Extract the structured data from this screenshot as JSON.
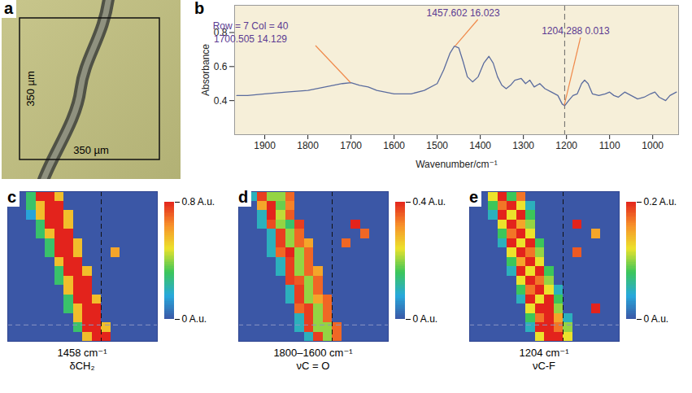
{
  "chart_data": [
    {
      "type": "image",
      "panel": "a",
      "width_label": "350 µm",
      "height_label": "350 µm"
    },
    {
      "type": "line",
      "panel": "b",
      "color": "#5b6c9e",
      "xlabel": "Wavenumber/cm⁻¹",
      "ylabel": "Absorbance",
      "xlim": [
        1970,
        940
      ],
      "ylim": [
        0.2,
        0.96
      ],
      "xticks": [
        1900,
        1800,
        1700,
        1600,
        1500,
        1400,
        1300,
        1200,
        1100,
        1000
      ],
      "yticks": [
        0.4,
        0.6,
        0.8
      ],
      "x": [
        1965,
        1940,
        1900,
        1850,
        1800,
        1760,
        1720,
        1700,
        1680,
        1660,
        1640,
        1600,
        1560,
        1530,
        1500,
        1485,
        1470,
        1460,
        1450,
        1440,
        1430,
        1418,
        1405,
        1392,
        1380,
        1370,
        1360,
        1350,
        1340,
        1330,
        1320,
        1305,
        1295,
        1285,
        1275,
        1262,
        1250,
        1235,
        1220,
        1210,
        1204,
        1195,
        1185,
        1175,
        1165,
        1158,
        1150,
        1140,
        1125,
        1110,
        1100,
        1090,
        1080,
        1065,
        1050,
        1035,
        1020,
        1005,
        995,
        985,
        970,
        960,
        945
      ],
      "values": [
        0.43,
        0.43,
        0.44,
        0.45,
        0.46,
        0.48,
        0.5,
        0.505,
        0.49,
        0.48,
        0.46,
        0.44,
        0.44,
        0.46,
        0.5,
        0.58,
        0.68,
        0.72,
        0.71,
        0.63,
        0.54,
        0.51,
        0.54,
        0.62,
        0.66,
        0.62,
        0.54,
        0.49,
        0.47,
        0.49,
        0.52,
        0.53,
        0.5,
        0.52,
        0.48,
        0.5,
        0.47,
        0.45,
        0.43,
        0.38,
        0.37,
        0.4,
        0.43,
        0.44,
        0.5,
        0.52,
        0.5,
        0.44,
        0.43,
        0.44,
        0.45,
        0.43,
        0.42,
        0.45,
        0.43,
        0.41,
        0.42,
        0.44,
        0.45,
        0.42,
        0.4,
        0.43,
        0.45
      ],
      "cursor_x": 1204.288,
      "annotations": [
        {
          "text": "Row = 7 Col = 40"
        },
        {
          "text": "1700.505 14.129",
          "x": 1700.505
        },
        {
          "text": "1457.602 16.023",
          "x": 1457.602
        },
        {
          "text": "1204.288 0.013",
          "x": 1204.288
        }
      ]
    },
    {
      "type": "heatmap",
      "panel": "c",
      "label": "1458 cm⁻¹",
      "band": "δCH₂",
      "xlim": [
        0,
        64
      ],
      "ylim": [
        0,
        64
      ],
      "tick_labels": false,
      "cursor": {
        "row": 7,
        "col": 40
      },
      "colorbar": {
        "range": [
          0,
          0.8
        ],
        "ticks": [
          {
            "value": 0,
            "label": "0 A.u."
          },
          {
            "value": 0.8,
            "label": "0.8 A.u."
          }
        ]
      },
      "cells": [
        [
          0,
          0,
          0.3,
          0.8,
          0.8,
          0.55,
          0,
          0,
          0,
          0,
          0,
          0,
          0,
          0,
          0,
          0
        ],
        [
          0,
          0,
          0.3,
          0.55,
          0.8,
          0.8,
          0,
          0,
          0,
          0,
          0,
          0,
          0,
          0,
          0,
          0
        ],
        [
          0,
          0,
          0.15,
          0.55,
          0.8,
          0.8,
          0.55,
          0,
          0,
          0,
          0,
          0,
          0,
          0,
          0,
          0
        ],
        [
          0,
          0,
          0,
          0.3,
          0.8,
          0.8,
          0.55,
          0,
          0,
          0,
          0,
          0,
          0,
          0,
          0,
          0
        ],
        [
          0,
          0,
          0,
          0.3,
          0.55,
          0.8,
          0.8,
          0,
          0,
          0,
          0,
          0,
          0,
          0,
          0,
          0
        ],
        [
          0,
          0,
          0,
          0,
          0.3,
          0.8,
          0.8,
          0.55,
          0,
          0,
          0,
          0,
          0,
          0,
          0,
          0
        ],
        [
          0,
          0,
          0,
          0,
          0.3,
          0.8,
          0.8,
          0.55,
          0,
          0,
          0,
          0.6,
          0,
          0,
          0,
          0
        ],
        [
          0,
          0,
          0,
          0,
          0,
          0.55,
          0.8,
          0.8,
          0,
          0,
          0,
          0,
          0,
          0,
          0,
          0
        ],
        [
          0,
          0,
          0,
          0,
          0,
          0.3,
          0.8,
          0.8,
          0.55,
          0,
          0,
          0,
          0,
          0,
          0,
          0
        ],
        [
          0,
          0,
          0,
          0,
          0,
          0.3,
          0.55,
          0.8,
          0.8,
          0,
          0,
          0,
          0,
          0,
          0,
          0
        ],
        [
          0,
          0,
          0,
          0,
          0,
          0,
          0.55,
          0.8,
          0.8,
          0,
          0,
          0,
          0,
          0,
          0,
          0
        ],
        [
          0,
          0,
          0,
          0,
          0,
          0,
          0.3,
          0.8,
          0.8,
          0.55,
          0,
          0,
          0,
          0,
          0,
          0
        ],
        [
          0,
          0,
          0,
          0,
          0,
          0,
          0.3,
          0.55,
          0.8,
          0.8,
          0,
          0,
          0,
          0,
          0,
          0
        ],
        [
          0,
          0,
          0,
          0,
          0,
          0,
          0,
          0.55,
          0.8,
          0.8,
          0,
          0,
          0,
          0,
          0,
          0
        ],
        [
          0,
          0,
          0,
          0,
          0,
          0,
          0,
          0.3,
          0.8,
          0.8,
          0.55,
          0,
          0,
          0,
          0,
          0
        ],
        [
          0,
          0,
          0,
          0,
          0,
          0,
          0,
          0,
          0.55,
          0.8,
          0.8,
          0,
          0,
          0,
          0,
          0
        ]
      ]
    },
    {
      "type": "heatmap",
      "panel": "d",
      "label": "1800–1600 cm⁻¹",
      "band": "νC = O",
      "xlim": [
        0,
        64
      ],
      "ylim": [
        0,
        64
      ],
      "tick_labels": false,
      "cursor": {
        "row": 7,
        "col": 40
      },
      "colorbar": {
        "range": [
          0,
          0.4
        ],
        "ticks": [
          {
            "value": 0,
            "label": "0 A.u."
          },
          {
            "value": 0.4,
            "label": "0.4 A.u."
          }
        ]
      },
      "cells": [
        [
          0,
          0.1,
          0.38,
          0.2,
          0.2,
          0.35,
          0,
          0,
          0,
          0,
          0,
          0,
          0,
          0,
          0,
          0
        ],
        [
          0,
          0,
          0.3,
          0.4,
          0.18,
          0.33,
          0,
          0,
          0,
          0,
          0,
          0,
          0,
          0,
          0,
          0
        ],
        [
          0,
          0,
          0.1,
          0.4,
          0.22,
          0.36,
          0,
          0,
          0,
          0,
          0,
          0,
          0,
          0,
          0,
          0
        ],
        [
          0,
          0,
          0.1,
          0.37,
          0.2,
          0.15,
          0.38,
          0,
          0,
          0,
          0,
          0,
          0.4,
          0,
          0,
          0
        ],
        [
          0,
          0,
          0,
          0.1,
          0.38,
          0.2,
          0.35,
          0,
          0,
          0,
          0,
          0,
          0,
          0.35,
          0,
          0
        ],
        [
          0,
          0,
          0,
          0.1,
          0.38,
          0.2,
          0.35,
          0.3,
          0,
          0,
          0,
          0.35,
          0,
          0,
          0,
          0
        ],
        [
          0,
          0,
          0,
          0.1,
          0.35,
          0.4,
          0.2,
          0.35,
          0,
          0,
          0,
          0,
          0,
          0,
          0,
          0
        ],
        [
          0,
          0,
          0,
          0,
          0.1,
          0.38,
          0.2,
          0.35,
          0,
          0,
          0,
          0,
          0,
          0,
          0,
          0
        ],
        [
          0,
          0,
          0,
          0,
          0.1,
          0.38,
          0.2,
          0.35,
          0.3,
          0,
          0,
          0,
          0,
          0,
          0,
          0
        ],
        [
          0,
          0,
          0,
          0,
          0,
          0.38,
          0.36,
          0.2,
          0.35,
          0,
          0,
          0,
          0,
          0,
          0,
          0
        ],
        [
          0,
          0,
          0,
          0,
          0,
          0.1,
          0.38,
          0.2,
          0.35,
          0,
          0,
          0,
          0,
          0,
          0,
          0
        ],
        [
          0,
          0,
          0,
          0,
          0,
          0.1,
          0.38,
          0.2,
          0.3,
          0.35,
          0,
          0,
          0,
          0,
          0,
          0
        ],
        [
          0,
          0,
          0,
          0,
          0,
          0,
          0.35,
          0.38,
          0.2,
          0.35,
          0,
          0,
          0,
          0,
          0,
          0
        ],
        [
          0,
          0,
          0,
          0,
          0,
          0,
          0.1,
          0.38,
          0.2,
          0.35,
          0,
          0,
          0,
          0,
          0,
          0
        ],
        [
          0,
          0,
          0,
          0,
          0,
          0,
          0.1,
          0.38,
          0.2,
          0.2,
          0.35,
          0,
          0,
          0,
          0,
          0
        ],
        [
          0,
          0,
          0,
          0,
          0,
          0,
          0,
          0.1,
          0.38,
          0.2,
          0.35,
          0,
          0,
          0,
          0,
          0
        ]
      ]
    },
    {
      "type": "heatmap",
      "panel": "e",
      "label": "1204 cm⁻¹",
      "band": "νC-F",
      "xlim": [
        0,
        64
      ],
      "ylim": [
        0,
        64
      ],
      "tick_labels": false,
      "cursor": {
        "row": 7,
        "col": 40
      },
      "colorbar": {
        "range": [
          0,
          0.2
        ],
        "ticks": [
          {
            "value": 0,
            "label": "0 A.u."
          },
          {
            "value": 0.2,
            "label": "0.2 A.u."
          }
        ]
      },
      "cells": [
        [
          0,
          0,
          0.12,
          0.2,
          0.08,
          0.17,
          0,
          0,
          0,
          0,
          0,
          0,
          0,
          0,
          0,
          0
        ],
        [
          0,
          0,
          0.08,
          0.17,
          0.2,
          0.12,
          0.05,
          0,
          0,
          0,
          0,
          0,
          0,
          0,
          0,
          0
        ],
        [
          0,
          0,
          0.05,
          0.2,
          0.12,
          0.2,
          0.08,
          0,
          0,
          0,
          0,
          0,
          0,
          0,
          0,
          0
        ],
        [
          0,
          0,
          0,
          0.12,
          0.2,
          0.15,
          0.1,
          0,
          0,
          0,
          0,
          0.2,
          0,
          0,
          0,
          0
        ],
        [
          0,
          0,
          0,
          0.08,
          0.17,
          0.2,
          0.12,
          0,
          0,
          0,
          0,
          0,
          0,
          0.15,
          0,
          0
        ],
        [
          0,
          0,
          0,
          0.05,
          0.2,
          0.12,
          0.2,
          0.08,
          0,
          0,
          0,
          0,
          0,
          0,
          0,
          0
        ],
        [
          0,
          0,
          0,
          0,
          0.12,
          0.2,
          0.17,
          0.1,
          0,
          0,
          0,
          0.18,
          0,
          0,
          0,
          0
        ],
        [
          0,
          0,
          0,
          0,
          0.08,
          0.15,
          0.2,
          0.12,
          0,
          0,
          0,
          0,
          0,
          0,
          0,
          0
        ],
        [
          0,
          0,
          0,
          0,
          0.05,
          0.2,
          0.12,
          0.2,
          0.08,
          0,
          0,
          0,
          0,
          0,
          0,
          0
        ],
        [
          0,
          0,
          0,
          0,
          0,
          0.12,
          0.2,
          0.17,
          0.1,
          0,
          0,
          0,
          0,
          0,
          0,
          0
        ],
        [
          0,
          0,
          0,
          0,
          0,
          0.08,
          0.17,
          0.2,
          0.12,
          0.05,
          0,
          0,
          0,
          0,
          0,
          0
        ],
        [
          0,
          0,
          0,
          0,
          0,
          0.05,
          0.2,
          0.12,
          0.2,
          0.08,
          0,
          0,
          0,
          0,
          0,
          0
        ],
        [
          0,
          0,
          0,
          0,
          0,
          0,
          0.12,
          0.2,
          0.2,
          0.1,
          0,
          0,
          0,
          0.2,
          0,
          0
        ],
        [
          0,
          0,
          0,
          0,
          0,
          0,
          0.08,
          0.17,
          0.2,
          0.15,
          0.05,
          0,
          0,
          0,
          0,
          0
        ],
        [
          0,
          0,
          0,
          0,
          0,
          0,
          0.05,
          0.2,
          0.2,
          0.17,
          0.1,
          0,
          0,
          0,
          0,
          0
        ],
        [
          0,
          0,
          0,
          0,
          0,
          0,
          0,
          0.12,
          0.2,
          0.2,
          0.12,
          0,
          0,
          0,
          0,
          0
        ]
      ]
    }
  ]
}
